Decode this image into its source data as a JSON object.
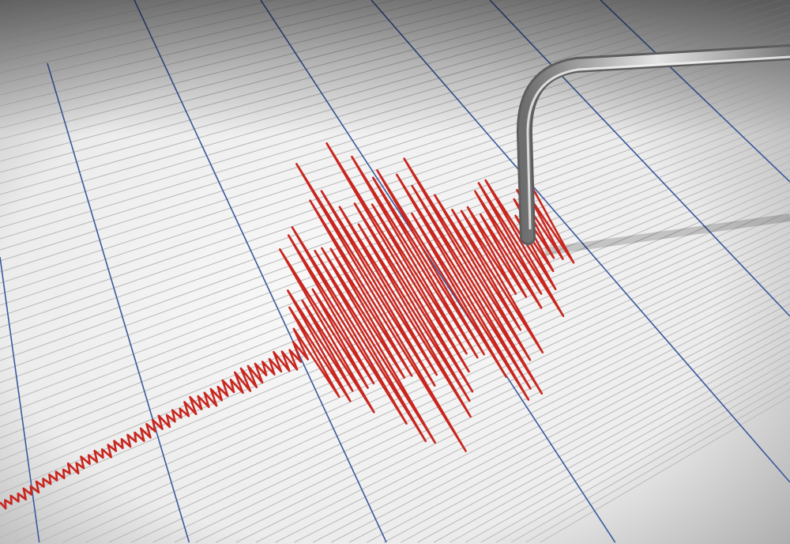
{
  "colors": {
    "paper": "#f2f2f2",
    "paper_shadow": "#9a9a9a",
    "grid_line": "#b8b8b8",
    "major_line": "#3a5a9c",
    "trace": "#c8261e",
    "needle": "#a8a8a8"
  },
  "icons": {
    "needle": "seismograph-stylus-icon"
  }
}
